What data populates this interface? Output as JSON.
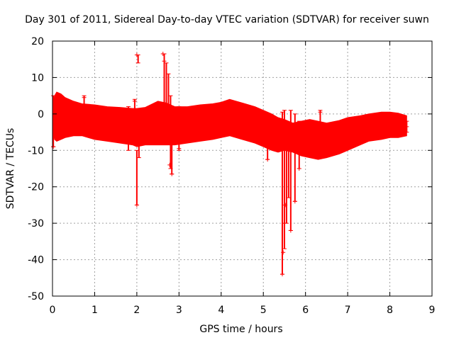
{
  "chart_data": {
    "type": "scatter",
    "title": "Day 301 of 2011, Sidereal Day-to-day VTEC variation (SDTVAR) for receiver suwn",
    "xlabel": "GPS time / hours",
    "ylabel": "SDTVAR / TECUs",
    "xlim": [
      0,
      9
    ],
    "ylim": [
      -50,
      20
    ],
    "xticks": [
      "0",
      "1",
      "2",
      "3",
      "4",
      "5",
      "6",
      "7",
      "8",
      "9"
    ],
    "yticks": [
      "20",
      "10",
      "0",
      "-10",
      "-20",
      "-30",
      "-40",
      "-50"
    ],
    "grid": true,
    "marker": "+",
    "color": "#ff0000",
    "series": [
      {
        "name": "SDTVAR",
        "band": {
          "x": [
            0.0,
            0.05,
            0.1,
            0.2,
            0.3,
            0.5,
            0.7,
            1.0,
            1.3,
            1.6,
            1.9,
            2.0,
            2.2,
            2.5,
            2.7,
            2.9,
            3.2,
            3.5,
            3.8,
            4.0,
            4.2,
            4.5,
            4.8,
            5.0,
            5.2,
            5.35,
            5.5,
            5.7,
            5.9,
            6.1,
            6.3,
            6.5,
            6.8,
            7.0,
            7.3,
            7.5,
            7.8,
            8.0,
            8.2,
            8.4
          ],
          "upper": [
            2.0,
            5.0,
            6.0,
            5.5,
            4.5,
            3.5,
            2.8,
            2.5,
            2.0,
            1.8,
            1.5,
            1.5,
            1.8,
            3.5,
            3.0,
            2.0,
            2.0,
            2.5,
            2.8,
            3.2,
            4.0,
            3.0,
            2.0,
            1.0,
            0.0,
            -1.0,
            -1.5,
            -2.5,
            -2.0,
            -1.5,
            -2.0,
            -2.5,
            -1.8,
            -1.0,
            -0.5,
            0.0,
            0.5,
            0.5,
            0.2,
            -0.5
          ],
          "lower": [
            -4.0,
            -7.0,
            -7.5,
            -7.0,
            -6.5,
            -6.0,
            -6.0,
            -7.0,
            -7.5,
            -8.0,
            -8.5,
            -9.0,
            -8.5,
            -8.5,
            -8.5,
            -8.5,
            -8.0,
            -7.5,
            -7.0,
            -6.5,
            -6.0,
            -7.0,
            -8.0,
            -9.0,
            -10.0,
            -10.5,
            -10.0,
            -10.5,
            -11.5,
            -12.0,
            -12.5,
            -12.0,
            -11.0,
            -10.0,
            -8.5,
            -7.5,
            -7.0,
            -6.5,
            -6.5,
            -6.0
          ]
        },
        "spikes": [
          {
            "x": 0.02,
            "min": -9.0,
            "max": 5.0
          },
          {
            "x": 0.75,
            "min": -4.0,
            "max": 5.0
          },
          {
            "x": 1.8,
            "min": -10.0,
            "max": 2.0
          },
          {
            "x": 1.95,
            "min": -7.0,
            "max": 4.0
          },
          {
            "x": 2.0,
            "min": -25.0,
            "max": -10.0
          },
          {
            "x": 2.03,
            "min": 14.0,
            "max": 16.2
          },
          {
            "x": 2.05,
            "min": -12.0,
            "max": 1.0
          },
          {
            "x": 2.65,
            "min": -8.0,
            "max": 16.5
          },
          {
            "x": 2.7,
            "min": -6.0,
            "max": 14.0
          },
          {
            "x": 2.75,
            "min": -8.0,
            "max": 11.0
          },
          {
            "x": 2.8,
            "min": -15.0,
            "max": 5.0
          },
          {
            "x": 2.83,
            "min": -16.5,
            "max": 0.0
          },
          {
            "x": 3.0,
            "min": -10.0,
            "max": 2.0
          },
          {
            "x": 5.1,
            "min": -12.5,
            "max": -5.0
          },
          {
            "x": 5.45,
            "min": -44.0,
            "max": 0.5
          },
          {
            "x": 5.5,
            "min": -37.0,
            "max": 1.0
          },
          {
            "x": 5.55,
            "min": -30.0,
            "max": -2.0
          },
          {
            "x": 5.6,
            "min": -23.0,
            "max": -5.0
          },
          {
            "x": 5.65,
            "min": -32.0,
            "max": 1.0
          },
          {
            "x": 5.75,
            "min": -24.0,
            "max": 0.0
          },
          {
            "x": 5.85,
            "min": -15.0,
            "max": -2.0
          },
          {
            "x": 6.35,
            "min": -8.0,
            "max": 1.0
          },
          {
            "x": 8.4,
            "min": -5.0,
            "max": -2.0
          }
        ],
        "points": [
          [
            2.0,
            16.2
          ],
          [
            2.62,
            16.5
          ],
          [
            2.0,
            -25.0
          ],
          [
            2.83,
            -16.5
          ],
          [
            5.45,
            -44.0
          ],
          [
            5.47,
            -38.0
          ],
          [
            5.65,
            -32.0
          ],
          [
            5.5,
            -30.0
          ],
          [
            5.52,
            -25.0
          ],
          [
            5.75,
            -24.0
          ],
          [
            5.1,
            -12.5
          ],
          [
            5.85,
            -15.0
          ],
          [
            2.78,
            -14.0
          ],
          [
            2.65,
            14.5
          ],
          [
            1.95,
            3.5
          ],
          [
            0.75,
            4.5
          ],
          [
            0.02,
            -9.0
          ],
          [
            8.4,
            -3.5
          ],
          [
            6.35,
            0.5
          ],
          [
            3.0,
            -9.5
          ]
        ]
      }
    ]
  }
}
